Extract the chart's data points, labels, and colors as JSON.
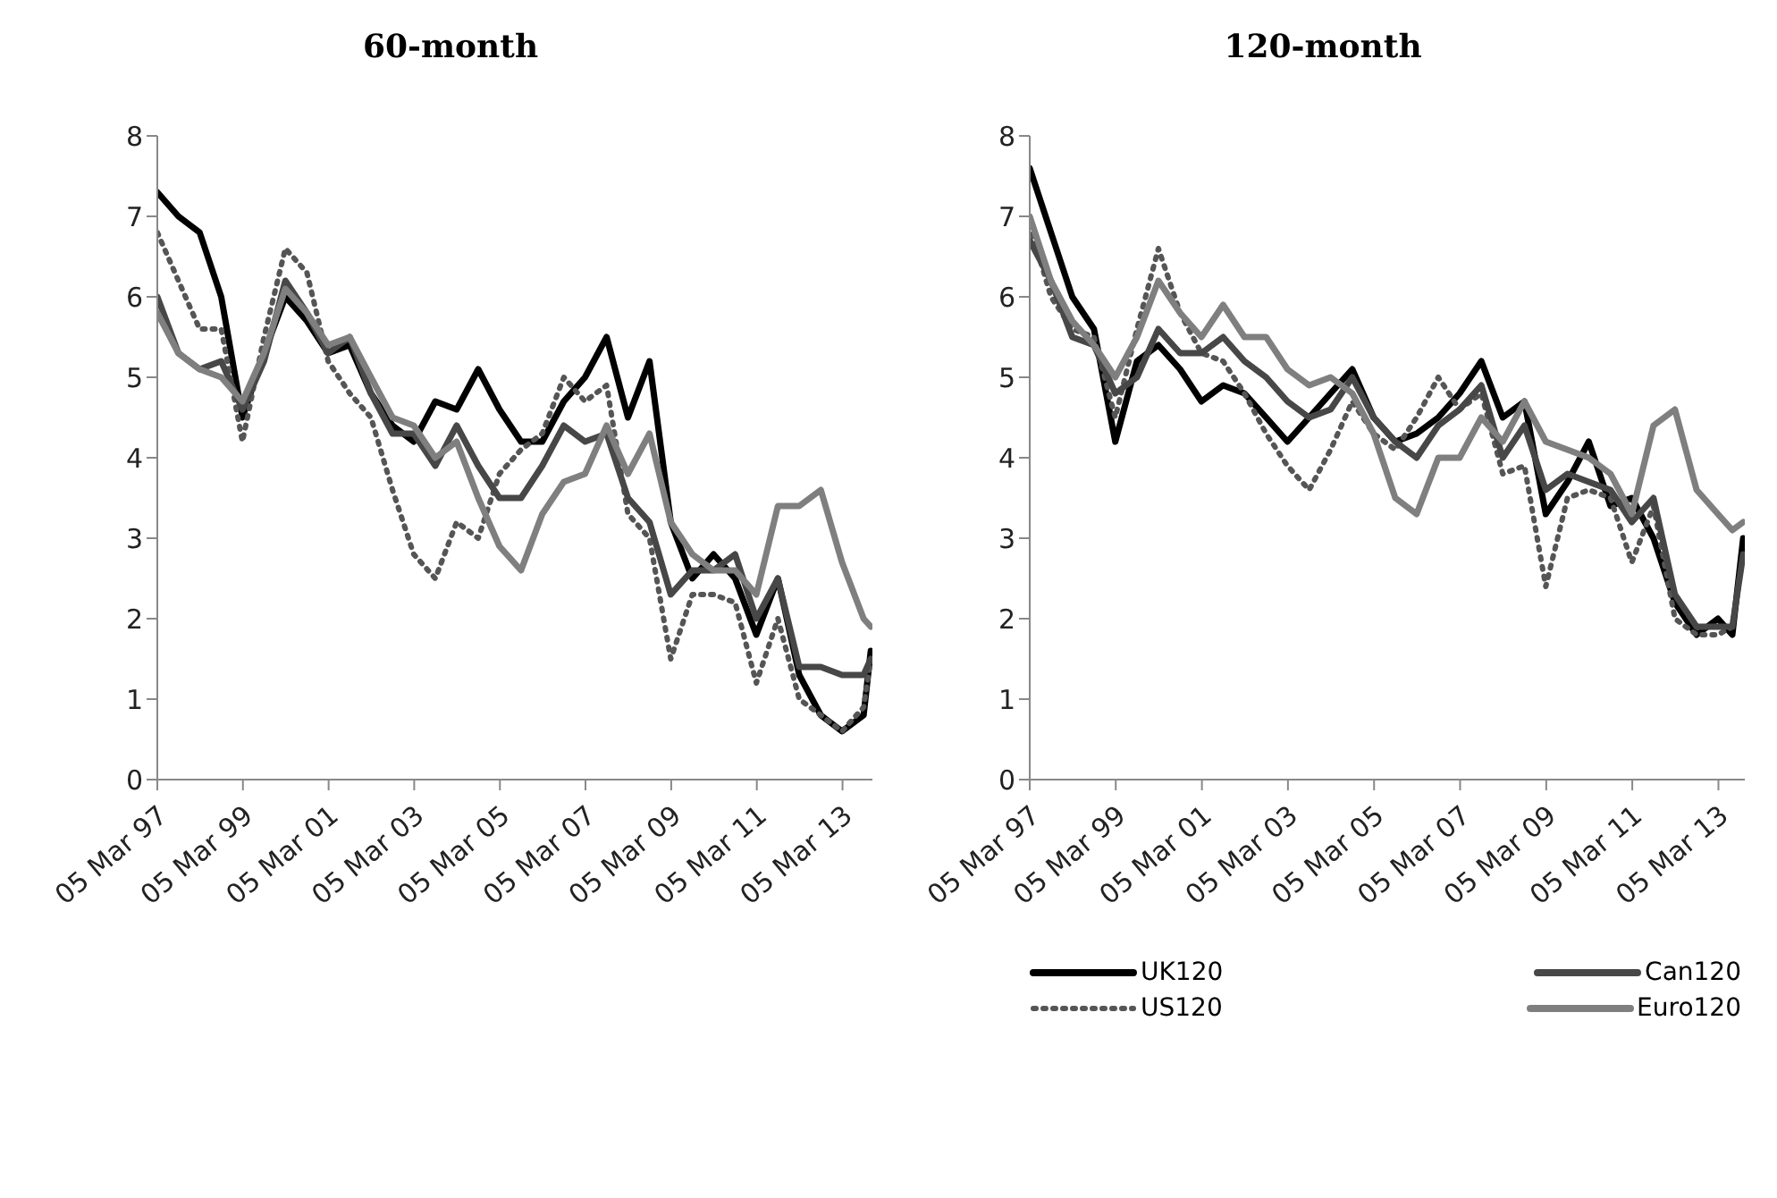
{
  "chart_data": [
    {
      "type": "line",
      "title": "60-month",
      "legend": false,
      "x": [
        "1997-03-05",
        "1997-09",
        "1998-03",
        "1998-09",
        "1999-03",
        "1999-09",
        "2000-03",
        "2000-09",
        "2001-03",
        "2001-09",
        "2002-03",
        "2002-09",
        "2003-03",
        "2003-09",
        "2004-03",
        "2004-09",
        "2005-03",
        "2005-09",
        "2006-03",
        "2006-09",
        "2007-03",
        "2007-09",
        "2008-03",
        "2008-09",
        "2009-03",
        "2009-09",
        "2010-03",
        "2010-09",
        "2011-03",
        "2011-09",
        "2012-03",
        "2012-09",
        "2013-03",
        "2013-09",
        "2013-11"
      ],
      "xlim": [
        "1997-03-05",
        "2013-11-15"
      ],
      "xticks": [
        {
          "value": "1997-03-05",
          "label": "05 Mar 97"
        },
        {
          "value": "1999-03-05",
          "label": "05 Mar 99"
        },
        {
          "value": "2001-03-05",
          "label": "05 Mar 01"
        },
        {
          "value": "2003-03-05",
          "label": "05 Mar 03"
        },
        {
          "value": "2005-03-05",
          "label": "05 Mar 05"
        },
        {
          "value": "2007-03-05",
          "label": "05 Mar 07"
        },
        {
          "value": "2009-03-05",
          "label": "05 Mar 09"
        },
        {
          "value": "2011-03-05",
          "label": "05 Mar 11"
        },
        {
          "value": "2013-03-05",
          "label": "05 Mar 13"
        }
      ],
      "ylim": [
        0,
        8
      ],
      "yticks": [
        0,
        1,
        2,
        3,
        4,
        5,
        6,
        7,
        8
      ],
      "series": [
        {
          "color": "#000000",
          "line_style": "solid",
          "values": [
            7.3,
            7.0,
            6.8,
            6.0,
            4.5,
            5.3,
            6.0,
            5.7,
            5.3,
            5.4,
            4.8,
            4.4,
            4.2,
            4.7,
            4.6,
            5.1,
            4.6,
            4.2,
            4.2,
            4.7,
            5.0,
            5.5,
            4.5,
            5.2,
            3.2,
            2.5,
            2.8,
            2.5,
            1.8,
            2.5,
            1.3,
            0.8,
            0.6,
            0.8,
            1.6
          ]
        },
        {
          "color": "#555555",
          "line_style": "dotted",
          "values": [
            6.8,
            6.2,
            5.6,
            5.6,
            4.2,
            5.5,
            6.6,
            6.3,
            5.2,
            4.8,
            4.5,
            3.6,
            2.8,
            2.5,
            3.2,
            3.0,
            3.8,
            4.1,
            4.3,
            5.0,
            4.7,
            4.9,
            3.3,
            3.0,
            1.5,
            2.3,
            2.3,
            2.2,
            1.2,
            2.0,
            1.0,
            0.8,
            0.6,
            0.9,
            1.5
          ]
        },
        {
          "color": "#474747",
          "line_style": "solid",
          "values": [
            6.0,
            5.3,
            5.1,
            5.2,
            4.6,
            5.2,
            6.2,
            5.8,
            5.3,
            5.5,
            4.8,
            4.3,
            4.3,
            3.9,
            4.4,
            3.9,
            3.5,
            3.5,
            3.9,
            4.4,
            4.2,
            4.3,
            3.5,
            3.2,
            2.3,
            2.6,
            2.6,
            2.8,
            2.0,
            2.5,
            1.4,
            1.4,
            1.3,
            1.3,
            1.5
          ]
        },
        {
          "color": "#7f7f7f",
          "line_style": "solid",
          "values": [
            5.8,
            5.3,
            5.1,
            5.0,
            4.7,
            5.3,
            6.1,
            5.8,
            5.4,
            5.5,
            5.0,
            4.5,
            4.4,
            4.0,
            4.2,
            3.5,
            2.9,
            2.6,
            3.3,
            3.7,
            3.8,
            4.4,
            3.8,
            4.3,
            3.2,
            2.8,
            2.6,
            2.6,
            2.3,
            3.4,
            3.4,
            3.6,
            2.7,
            2.0,
            1.9
          ]
        }
      ]
    },
    {
      "type": "line",
      "title": "120-month",
      "legend": "bottom",
      "x": [
        "1997-03-05",
        "1997-09",
        "1998-03",
        "1998-09",
        "1999-03",
        "1999-09",
        "2000-03",
        "2000-09",
        "2001-03",
        "2001-09",
        "2002-03",
        "2002-09",
        "2003-03",
        "2003-09",
        "2004-03",
        "2004-09",
        "2005-03",
        "2005-09",
        "2006-03",
        "2006-09",
        "2007-03",
        "2007-09",
        "2008-03",
        "2008-09",
        "2009-03",
        "2009-09",
        "2010-03",
        "2010-09",
        "2011-03",
        "2011-09",
        "2012-03",
        "2012-09",
        "2013-03",
        "2013-07",
        "2013-10"
      ],
      "xlim": [
        "1997-03-05",
        "2013-10-15"
      ],
      "xticks": [
        {
          "value": "1997-03-05",
          "label": "05 Mar 97"
        },
        {
          "value": "1999-03-05",
          "label": "05 Mar 99"
        },
        {
          "value": "2001-03-05",
          "label": "05 Mar 01"
        },
        {
          "value": "2003-03-05",
          "label": "05 Mar 03"
        },
        {
          "value": "2005-03-05",
          "label": "05 Mar 05"
        },
        {
          "value": "2007-03-05",
          "label": "05 Mar 07"
        },
        {
          "value": "2009-03-05",
          "label": "05 Mar 09"
        },
        {
          "value": "2011-03-05",
          "label": "05 Mar 11"
        },
        {
          "value": "2013-03-05",
          "label": "05 Mar 13"
        }
      ],
      "ylim": [
        0,
        8
      ],
      "yticks": [
        0,
        1,
        2,
        3,
        4,
        5,
        6,
        7,
        8
      ],
      "series": [
        {
          "name": "UK120",
          "color": "#000000",
          "line_style": "solid",
          "values": [
            7.6,
            6.8,
            6.0,
            5.6,
            4.2,
            5.2,
            5.4,
            5.1,
            4.7,
            4.9,
            4.8,
            4.5,
            4.2,
            4.5,
            4.8,
            5.1,
            4.5,
            4.2,
            4.3,
            4.5,
            4.8,
            5.2,
            4.5,
            4.7,
            3.3,
            3.7,
            4.2,
            3.4,
            3.5,
            3.0,
            2.2,
            1.8,
            2.0,
            1.8,
            3.0
          ]
        },
        {
          "name": "US120",
          "color": "#555555",
          "line_style": "dotted",
          "values": [
            6.9,
            6.0,
            5.6,
            5.5,
            4.5,
            5.6,
            6.6,
            5.8,
            5.3,
            5.2,
            4.8,
            4.3,
            3.9,
            3.6,
            4.1,
            4.7,
            4.3,
            4.1,
            4.5,
            5.0,
            4.6,
            4.8,
            3.8,
            3.9,
            2.4,
            3.5,
            3.6,
            3.5,
            2.7,
            3.4,
            2.0,
            1.8,
            1.8,
            1.9,
            2.8
          ]
        },
        {
          "name": "Can120",
          "color": "#474747",
          "line_style": "solid",
          "values": [
            6.7,
            6.2,
            5.5,
            5.4,
            4.8,
            5.0,
            5.6,
            5.3,
            5.3,
            5.5,
            5.2,
            5.0,
            4.7,
            4.5,
            4.6,
            5.0,
            4.5,
            4.2,
            4.0,
            4.4,
            4.6,
            4.9,
            4.0,
            4.4,
            3.6,
            3.8,
            3.7,
            3.6,
            3.2,
            3.5,
            2.3,
            1.9,
            1.9,
            1.9,
            2.8
          ]
        },
        {
          "name": "Euro120",
          "color": "#7f7f7f",
          "line_style": "solid",
          "values": [
            7.0,
            6.2,
            5.7,
            5.4,
            5.0,
            5.5,
            6.2,
            5.8,
            5.5,
            5.9,
            5.5,
            5.5,
            5.1,
            4.9,
            5.0,
            4.8,
            4.3,
            3.5,
            3.3,
            4.0,
            4.0,
            4.5,
            4.2,
            4.7,
            4.2,
            4.1,
            4.0,
            3.8,
            3.3,
            4.4,
            4.6,
            3.6,
            3.3,
            3.1,
            3.2
          ]
        }
      ]
    }
  ]
}
